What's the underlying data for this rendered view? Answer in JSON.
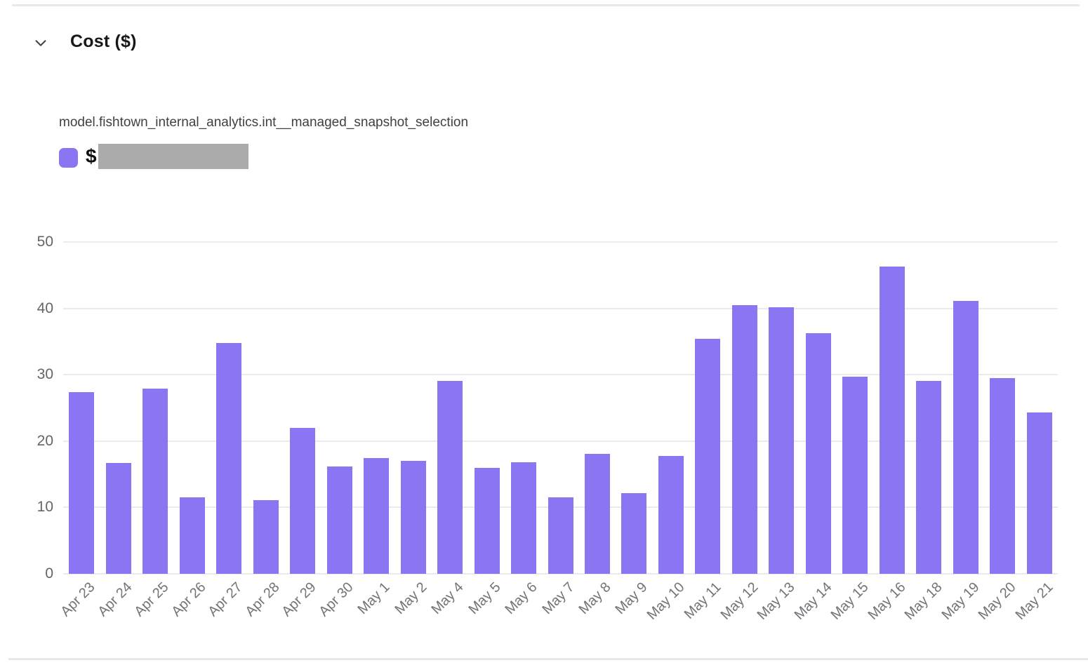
{
  "header": {
    "title": "Cost ($)",
    "collapse_icon": "chevron-down"
  },
  "colors": {
    "bar": "#8b75f3",
    "legend_swatch": "#8b75f3",
    "redaction_box": "#ababab",
    "gridline": "#ebebee",
    "rule": "#e9e9eb",
    "title_text": "#18181b",
    "axis_text": "#6b6b70"
  },
  "legend": {
    "series_title": "model.fishtown_internal_analytics.int__managed_snapshot_selection",
    "value_prefix": "$",
    "value_redacted": true
  },
  "chart_data": {
    "type": "bar",
    "title": "model.fishtown_internal_analytics.int__managed_snapshot_selection",
    "xlabel": "",
    "ylabel": "Cost ($)",
    "ylim": [
      0,
      50
    ],
    "yticks": [
      0,
      10,
      20,
      30,
      40,
      50
    ],
    "grid": true,
    "legend_position": "top-left",
    "bar_color": "#8b75f3",
    "categories": [
      "Apr 23",
      "Apr 24",
      "Apr 25",
      "Apr 26",
      "Apr 27",
      "Apr 28",
      "Apr 29",
      "Apr 30",
      "May 1",
      "May 2",
      "May 4",
      "May 5",
      "May 6",
      "May 7",
      "May 8",
      "May 9",
      "May 10",
      "May 11",
      "May 12",
      "May 13",
      "May 14",
      "May 15",
      "May 16",
      "May 18",
      "May 19",
      "May 20",
      "May 21"
    ],
    "values": [
      27.4,
      16.7,
      27.9,
      11.5,
      34.8,
      11.1,
      22.0,
      16.2,
      17.4,
      17.0,
      29.1,
      16.0,
      16.8,
      11.5,
      18.1,
      12.2,
      17.8,
      35.4,
      40.5,
      40.2,
      36.3,
      29.7,
      46.3,
      29.1,
      41.1,
      29.5,
      24.3
    ]
  }
}
